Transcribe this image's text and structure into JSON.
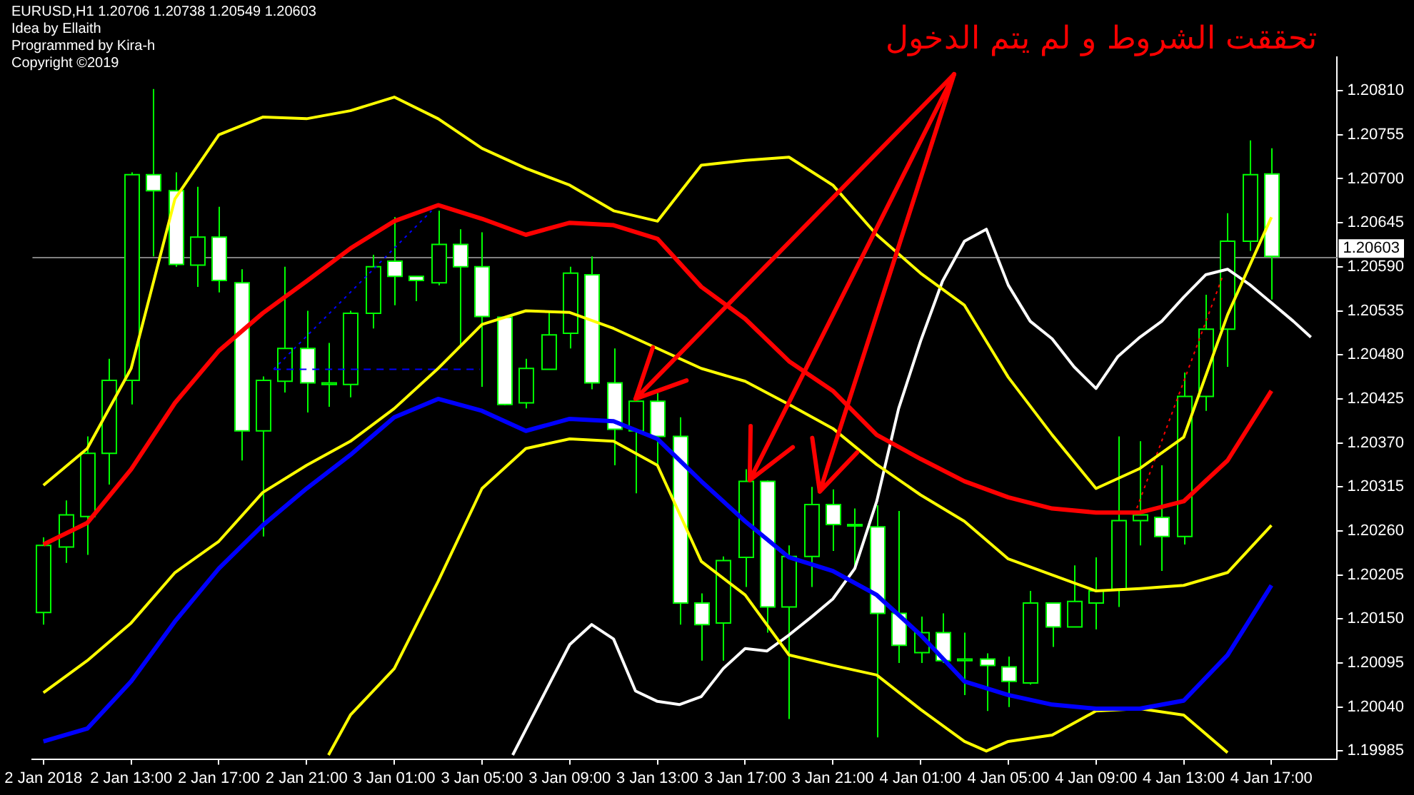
{
  "chart_data": {
    "type": "candlestick",
    "title": "EURUSD,H1  1.20706 1.20738 1.20549 1.20603",
    "annotations": [
      "Idea by Ellaith",
      "Programmed by Kira-h",
      "Copyright ©2019",
      {
        "text": "تحققت الشروط و لم يتم الدخول",
        "x": "2018-01-03T12:00",
        "y": 1.20425
      }
    ],
    "x": [
      "2018-01-02T09:00",
      "2018-01-02T10:00",
      "2018-01-02T11:00",
      "2018-01-02T12:00",
      "2018-01-02T13:00",
      "2018-01-02T14:00",
      "2018-01-02T15:00",
      "2018-01-02T16:00",
      "2018-01-02T17:00",
      "2018-01-02T18:00",
      "2018-01-02T19:00",
      "2018-01-02T20:00",
      "2018-01-02T21:00",
      "2018-01-02T22:00",
      "2018-01-02T23:00",
      "2018-01-03T00:00",
      "2018-01-03T01:00",
      "2018-01-03T02:00",
      "2018-01-03T03:00",
      "2018-01-03T04:00",
      "2018-01-03T05:00",
      "2018-01-03T06:00",
      "2018-01-03T07:00",
      "2018-01-03T08:00",
      "2018-01-03T09:00",
      "2018-01-03T10:00",
      "2018-01-03T11:00",
      "2018-01-03T12:00",
      "2018-01-03T13:00",
      "2018-01-03T14:00",
      "2018-01-03T15:00",
      "2018-01-03T16:00",
      "2018-01-03T17:00",
      "2018-01-03T18:00",
      "2018-01-03T19:00",
      "2018-01-03T20:00",
      "2018-01-03T21:00",
      "2018-01-03T22:00",
      "2018-01-03T23:00",
      "2018-01-04T00:00",
      "2018-01-04T01:00",
      "2018-01-04T02:00",
      "2018-01-04T03:00",
      "2018-01-04T04:00",
      "2018-01-04T05:00",
      "2018-01-04T06:00",
      "2018-01-04T07:00",
      "2018-01-04T08:00",
      "2018-01-04T09:00",
      "2018-01-04T10:00",
      "2018-01-04T11:00",
      "2018-01-04T12:00",
      "2018-01-04T13:00",
      "2018-01-04T14:00",
      "2018-01-04T15:00",
      "2018-01-04T16:00",
      "2018-01-04T17:00"
    ],
    "ohlc": [
      [
        1.20158,
        1.20252,
        1.20143,
        1.20242
      ],
      [
        1.2024,
        1.20298,
        1.2022,
        1.2028
      ],
      [
        1.20278,
        1.20378,
        1.2023,
        1.20357
      ],
      [
        1.20357,
        1.20475,
        1.20318,
        1.20448
      ],
      [
        1.20448,
        1.20708,
        1.20418,
        1.20705
      ],
      [
        1.20705,
        1.20812,
        1.20603,
        1.20685
      ],
      [
        1.20685,
        1.20708,
        1.2059,
        1.20593
      ],
      [
        1.20592,
        1.2069,
        1.20565,
        1.20627
      ],
      [
        1.20627,
        1.20665,
        1.20558,
        1.20573
      ],
      [
        1.2057,
        1.20587,
        1.20348,
        1.20385
      ],
      [
        1.20385,
        1.20453,
        1.20253,
        1.20448
      ],
      [
        1.20447,
        1.2059,
        1.20433,
        1.20488
      ],
      [
        1.20488,
        1.20535,
        1.20408,
        1.20445
      ],
      [
        1.20443,
        1.20495,
        1.20415,
        1.20445
      ],
      [
        1.20443,
        1.20535,
        1.20427,
        1.20532
      ],
      [
        1.20532,
        1.20605,
        1.20513,
        1.2059
      ],
      [
        1.20597,
        1.20652,
        1.20542,
        1.20578
      ],
      [
        1.20578,
        1.20578,
        1.20547,
        1.20573
      ],
      [
        1.2057,
        1.2066,
        1.20567,
        1.20618
      ],
      [
        1.20618,
        1.20637,
        1.2049,
        1.2059
      ],
      [
        1.2059,
        1.20633,
        1.2044,
        1.20528
      ],
      [
        1.20527,
        1.20527,
        1.20417,
        1.20418
      ],
      [
        1.2042,
        1.20475,
        1.20413,
        1.20463
      ],
      [
        1.20462,
        1.20535,
        1.20462,
        1.20505
      ],
      [
        1.20507,
        1.2059,
        1.20488,
        1.20582
      ],
      [
        1.2058,
        1.20603,
        1.20437,
        1.20445
      ],
      [
        1.20445,
        1.20488,
        1.20342,
        1.20387
      ],
      [
        1.20385,
        1.20425,
        1.20307,
        1.20422
      ],
      [
        1.20422,
        1.20432,
        1.20342,
        1.20378
      ],
      [
        1.20378,
        1.20402,
        1.20143,
        1.2017
      ],
      [
        1.2017,
        1.20182,
        1.20098,
        1.20143
      ],
      [
        1.20145,
        1.20228,
        1.20098,
        1.20223
      ],
      [
        1.20227,
        1.20337,
        1.2019,
        1.20322
      ],
      [
        1.20322,
        1.20323,
        1.20133,
        1.20165
      ],
      [
        1.20165,
        1.20242,
        1.20025,
        1.20228
      ],
      [
        1.20228,
        1.20315,
        1.2019,
        1.20293
      ],
      [
        1.20293,
        1.20312,
        1.20235,
        1.20268
      ],
      [
        1.20267,
        1.20288,
        1.20213,
        1.20268
      ],
      [
        1.20265,
        1.20292,
        1.20002,
        1.20157
      ],
      [
        1.20157,
        1.20285,
        1.20095,
        1.20117
      ],
      [
        1.20108,
        1.20153,
        1.20095,
        1.20133
      ],
      [
        1.20133,
        1.20157,
        1.20095,
        1.20098
      ],
      [
        1.20098,
        1.20133,
        1.20055,
        1.201
      ],
      [
        1.201,
        1.20107,
        1.20035,
        1.20092
      ],
      [
        1.2009,
        1.20103,
        1.2004,
        1.20072
      ],
      [
        1.2007,
        1.20185,
        1.20068,
        1.2017
      ],
      [
        1.2017,
        1.2017,
        1.20115,
        1.2014
      ],
      [
        1.2014,
        1.20217,
        1.2014,
        1.20172
      ],
      [
        1.2017,
        1.20227,
        1.20137,
        1.20185
      ],
      [
        1.20187,
        1.20378,
        1.20165,
        1.20273
      ],
      [
        1.20273,
        1.20372,
        1.20242,
        1.2028
      ],
      [
        1.20277,
        1.20342,
        1.2021,
        1.20253
      ],
      [
        1.20253,
        1.20458,
        1.20243,
        1.20428
      ],
      [
        1.20428,
        1.20555,
        1.2041,
        1.20512
      ],
      [
        1.20512,
        1.20657,
        1.20465,
        1.20622
      ],
      [
        1.20622,
        1.20748,
        1.2061,
        1.20705
      ],
      [
        1.20706,
        1.20738,
        1.20549,
        1.20603
      ]
    ],
    "series": [
      {
        "type": "line",
        "color": "#ffff00",
        "x": [
          "2018-01-02T09:00",
          "2018-01-02T11:00",
          "2018-01-02T13:00",
          "2018-01-02T15:00",
          "2018-01-02T17:00",
          "2018-01-02T19:00",
          "2018-01-02T21:00",
          "2018-01-02T23:00",
          "2018-01-03T01:00",
          "2018-01-03T03:00",
          "2018-01-03T05:00",
          "2018-01-03T07:00",
          "2018-01-03T09:00",
          "2018-01-03T11:00",
          "2018-01-03T13:00",
          "2018-01-03T15:00",
          "2018-01-03T17:00",
          "2018-01-03T19:00",
          "2018-01-03T21:00",
          "2018-01-03T23:00",
          "2018-01-04T01:00",
          "2018-01-04T03:00",
          "2018-01-04T05:00",
          "2018-01-04T07:00",
          "2018-01-04T09:00",
          "2018-01-04T11:00",
          "2018-01-04T13:00",
          "2018-01-04T15:00",
          "2018-01-04T17:00"
        ],
        "values": [
          1.20317,
          1.20363,
          1.20463,
          1.20675,
          1.20755,
          1.20777,
          1.20775,
          1.20785,
          1.20802,
          1.20775,
          1.20738,
          1.20713,
          1.20692,
          1.2066,
          1.20647,
          1.20717,
          1.20723,
          1.20727,
          1.20692,
          1.2063,
          1.20582,
          1.20542,
          1.20452,
          1.2038,
          1.20313,
          1.20338,
          1.20377,
          1.2053,
          1.20652
        ]
      },
      {
        "type": "line",
        "color": "#ff0000",
        "x": [
          "2018-01-02T09:00",
          "2018-01-02T11:00",
          "2018-01-02T13:00",
          "2018-01-02T15:00",
          "2018-01-02T17:00",
          "2018-01-02T19:00",
          "2018-01-02T21:00",
          "2018-01-02T23:00",
          "2018-01-03T01:00",
          "2018-01-03T03:00",
          "2018-01-03T05:00",
          "2018-01-03T07:00",
          "2018-01-03T09:00",
          "2018-01-03T11:00",
          "2018-01-03T13:00",
          "2018-01-03T15:00",
          "2018-01-03T17:00",
          "2018-01-03T19:00",
          "2018-01-03T21:00",
          "2018-01-03T23:00",
          "2018-01-04T01:00",
          "2018-01-04T03:00",
          "2018-01-04T05:00",
          "2018-01-04T07:00",
          "2018-01-04T09:00",
          "2018-01-04T11:00",
          "2018-01-04T13:00",
          "2018-01-04T15:00",
          "2018-01-04T17:00"
        ],
        "values": [
          1.20243,
          1.2027,
          1.20337,
          1.2042,
          1.20485,
          1.20532,
          1.20572,
          1.20613,
          1.20647,
          1.20667,
          1.2065,
          1.2063,
          1.20645,
          1.20642,
          1.20625,
          1.20565,
          1.20525,
          1.20472,
          1.20435,
          1.2038,
          1.2035,
          1.20322,
          1.20302,
          1.20288,
          1.20283,
          1.20283,
          1.20297,
          1.20348,
          1.20435
        ]
      },
      {
        "type": "line",
        "color": "#ffff00",
        "x": [
          "2018-01-02T09:00",
          "2018-01-02T11:00",
          "2018-01-02T13:00",
          "2018-01-02T15:00",
          "2018-01-02T17:00",
          "2018-01-02T19:00",
          "2018-01-02T21:00",
          "2018-01-02T23:00",
          "2018-01-03T01:00",
          "2018-01-03T03:00",
          "2018-01-03T05:00",
          "2018-01-03T07:00",
          "2018-01-03T09:00",
          "2018-01-03T11:00",
          "2018-01-03T13:00",
          "2018-01-03T15:00",
          "2018-01-03T17:00",
          "2018-01-03T19:00",
          "2018-01-03T21:00",
          "2018-01-03T23:00",
          "2018-01-04T01:00",
          "2018-01-04T03:00",
          "2018-01-04T05:00",
          "2018-01-04T07:00",
          "2018-01-04T09:00",
          "2018-01-04T11:00",
          "2018-01-04T13:00",
          "2018-01-04T15:00",
          "2018-01-04T17:00"
        ],
        "values": [
          1.20058,
          1.20098,
          1.20145,
          1.20208,
          1.20247,
          1.20308,
          1.20342,
          1.20372,
          1.20413,
          1.20463,
          1.20518,
          1.20535,
          1.20533,
          1.20513,
          1.20488,
          1.20463,
          1.20447,
          1.20418,
          1.20388,
          1.20343,
          1.20305,
          1.20272,
          1.20225,
          1.20205,
          1.20185,
          1.20188,
          1.20192,
          1.20208,
          1.20267
        ]
      },
      {
        "type": "line",
        "color": "#0000ff",
        "x": [
          "2018-01-02T09:00",
          "2018-01-02T11:00",
          "2018-01-02T13:00",
          "2018-01-02T15:00",
          "2018-01-02T17:00",
          "2018-01-02T19:00",
          "2018-01-02T21:00",
          "2018-01-02T23:00",
          "2018-01-03T01:00",
          "2018-01-03T03:00",
          "2018-01-03T05:00",
          "2018-01-03T07:00",
          "2018-01-03T09:00",
          "2018-01-03T11:00",
          "2018-01-03T13:00",
          "2018-01-03T15:00",
          "2018-01-03T17:00",
          "2018-01-03T19:00",
          "2018-01-03T21:00",
          "2018-01-03T23:00",
          "2018-01-04T01:00",
          "2018-01-04T03:00",
          "2018-01-04T05:00",
          "2018-01-04T07:00",
          "2018-01-04T09:00",
          "2018-01-04T11:00",
          "2018-01-04T13:00",
          "2018-01-04T15:00",
          "2018-01-04T17:00"
        ],
        "values": [
          1.19997,
          1.20013,
          1.20072,
          1.20147,
          1.20213,
          1.20267,
          1.20313,
          1.20355,
          1.20402,
          1.20425,
          1.2041,
          1.20385,
          1.204,
          1.20397,
          1.20375,
          1.20322,
          1.20272,
          1.20227,
          1.2021,
          1.2018,
          1.2013,
          1.20072,
          1.20055,
          1.20043,
          1.20038,
          1.20038,
          1.20048,
          1.20105,
          1.20192
        ]
      },
      {
        "type": "line",
        "color": "#ffff00",
        "x": [
          "2018-01-02T22:00",
          "2018-01-02T23:00",
          "2018-01-03T01:00",
          "2018-01-03T03:00",
          "2018-01-03T05:00",
          "2018-01-03T07:00",
          "2018-01-03T09:00",
          "2018-01-03T11:00",
          "2018-01-03T13:00",
          "2018-01-03T15:00",
          "2018-01-03T17:00",
          "2018-01-03T19:00",
          "2018-01-03T21:00",
          "2018-01-03T23:00",
          "2018-01-04T01:00",
          "2018-01-04T03:00",
          "2018-01-04T04:00",
          "2018-01-04T05:00",
          "2018-01-04T07:00",
          "2018-01-04T09:00",
          "2018-01-04T11:00",
          "2018-01-04T13:00",
          "2018-01-04T15:00"
        ],
        "values": [
          1.1998,
          1.2003,
          1.20088,
          1.20197,
          1.20313,
          1.20363,
          1.20375,
          1.20372,
          1.20342,
          1.20222,
          1.2018,
          1.20105,
          1.20092,
          1.2008,
          1.20037,
          1.19997,
          1.19985,
          1.19997,
          1.20005,
          1.20035,
          1.20038,
          1.2003,
          1.19983
        ]
      },
      {
        "type": "line",
        "color": "#ffffff",
        "x": [
          "2018-01-03T06:24",
          "2018-01-03T07:00",
          "2018-01-03T09:00",
          "2018-01-03T10:00",
          "2018-01-03T11:00",
          "2018-01-03T12:00",
          "2018-01-03T13:00",
          "2018-01-03T14:00",
          "2018-01-03T15:00",
          "2018-01-03T16:00",
          "2018-01-03T17:00",
          "2018-01-03T18:00",
          "2018-01-03T19:00",
          "2018-01-03T20:00",
          "2018-01-03T21:00",
          "2018-01-03T22:00",
          "2018-01-03T23:00",
          "2018-01-04T00:00",
          "2018-01-04T01:00",
          "2018-01-04T02:00",
          "2018-01-04T03:00",
          "2018-01-04T04:00",
          "2018-01-04T05:00",
          "2018-01-04T06:00",
          "2018-01-04T07:00",
          "2018-01-04T08:00",
          "2018-01-04T09:00",
          "2018-01-04T10:00",
          "2018-01-04T11:00",
          "2018-01-04T12:00",
          "2018-01-04T13:00",
          "2018-01-04T14:00",
          "2018-01-04T15:00",
          "2018-01-04T16:00",
          "2018-01-04T17:00",
          "2018-01-04T18:00",
          "2018-01-04T18:48"
        ],
        "values": [
          1.1998,
          1.20012,
          1.20118,
          1.20143,
          1.20125,
          1.2006,
          1.20047,
          1.20043,
          1.20053,
          1.20088,
          1.20113,
          1.2011,
          1.2013,
          1.20152,
          1.20175,
          1.20213,
          1.20297,
          1.20413,
          1.20497,
          1.20572,
          1.20622,
          1.20637,
          1.20567,
          1.20522,
          1.205,
          1.20465,
          1.20438,
          1.20478,
          1.20502,
          1.20522,
          1.20552,
          1.2058,
          1.20587,
          1.20568,
          1.20545,
          1.20522,
          1.20502
        ]
      },
      {
        "type": "line",
        "color": "#0000ff",
        "line_style": "dashed",
        "x": [
          "2018-01-02T19:30",
          "2018-01-03T04:54"
        ],
        "values": [
          1.20462,
          1.20462
        ]
      },
      {
        "type": "line",
        "color": "#0000ff",
        "line_style": "dotted",
        "x": [
          "2018-01-02T19:30",
          "2018-01-03T02:42"
        ],
        "values": [
          1.20462,
          1.2066
        ]
      },
      {
        "type": "line",
        "color": "#ff0000",
        "line_style": "dotted",
        "x": [
          "2018-01-04T10:45",
          "2018-01-04T14:48"
        ],
        "values": [
          1.2028,
          1.2058
        ]
      }
    ],
    "ref_lines": [
      {
        "axis": "y",
        "value": 1.20603,
        "label": "1.20603",
        "color": "#808080"
      }
    ],
    "xlim": [
      "2018-01-02T08:30",
      "2018-01-04T20:00"
    ],
    "xticks": [
      {
        "value": "2018-01-02T09:00",
        "label": "2 Jan 2018"
      },
      {
        "value": "2018-01-02T13:00",
        "label": "2 Jan 13:00"
      },
      {
        "value": "2018-01-02T17:00",
        "label": "2 Jan 17:00"
      },
      {
        "value": "2018-01-02T21:00",
        "label": "2 Jan 21:00"
      },
      {
        "value": "2018-01-03T01:00",
        "label": "3 Jan 01:00"
      },
      {
        "value": "2018-01-03T05:00",
        "label": "3 Jan 05:00"
      },
      {
        "value": "2018-01-03T09:00",
        "label": "3 Jan 09:00"
      },
      {
        "value": "2018-01-03T13:00",
        "label": "3 Jan 13:00"
      },
      {
        "value": "2018-01-03T17:00",
        "label": "3 Jan 17:00"
      },
      {
        "value": "2018-01-03T21:00",
        "label": "3 Jan 21:00"
      },
      {
        "value": "2018-01-04T01:00",
        "label": "4 Jan 01:00"
      },
      {
        "value": "2018-01-04T05:00",
        "label": "4 Jan 05:00"
      },
      {
        "value": "2018-01-04T09:00",
        "label": "4 Jan 09:00"
      },
      {
        "value": "2018-01-04T13:00",
        "label": "4 Jan 13:00"
      },
      {
        "value": "2018-01-04T17:00",
        "label": "4 Jan 17:00"
      }
    ],
    "ylim": [
      1.19975,
      1.20852
    ],
    "yticks": [
      1.19985,
      {
        "value": 1.2004,
        "label": "1.20040"
      },
      1.20095,
      {
        "value": 1.2015,
        "label": "1.20150"
      },
      1.20205,
      {
        "value": 1.2026,
        "label": "1.20260"
      },
      1.20315,
      {
        "value": 1.2037,
        "label": "1.20370"
      },
      1.20425,
      {
        "value": 1.2048,
        "label": "1.20480"
      },
      1.20535,
      {
        "value": 1.2059,
        "label": "1.20590"
      },
      1.20645,
      {
        "value": 1.207,
        "label": "1.20700"
      },
      1.20755,
      {
        "value": 1.2081,
        "label": "1.20810"
      }
    ],
    "grid": false,
    "legend": false
  }
}
